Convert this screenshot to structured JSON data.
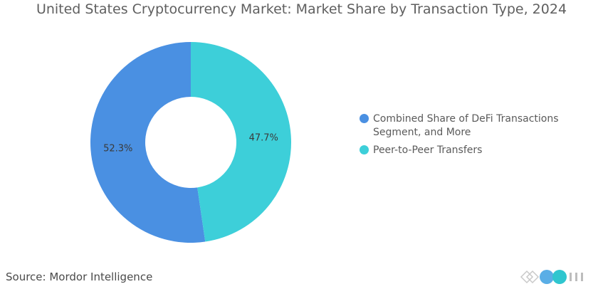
{
  "title": "United States Cryptocurrency Market: Market Share by Transaction Type, 2024",
  "source": {
    "label": "Source:",
    "value": "Mordor Intelligence"
  },
  "chart_data": {
    "type": "pie",
    "variant": "donut",
    "title": "United States Cryptocurrency Market: Market Share by Transaction Type, 2024",
    "categories": [
      "Combined Share of DeFi Transactions Segment, and More",
      "Peer-to-Peer Transfers"
    ],
    "values": [
      52.3,
      47.7
    ],
    "data_labels": [
      "52.3%",
      "47.7%"
    ],
    "colors": [
      "#4a90e2",
      "#3dcfd9"
    ],
    "legend_position": "right"
  },
  "colors": {
    "title": "#5f5f5f",
    "text": "#5a5a5a"
  }
}
